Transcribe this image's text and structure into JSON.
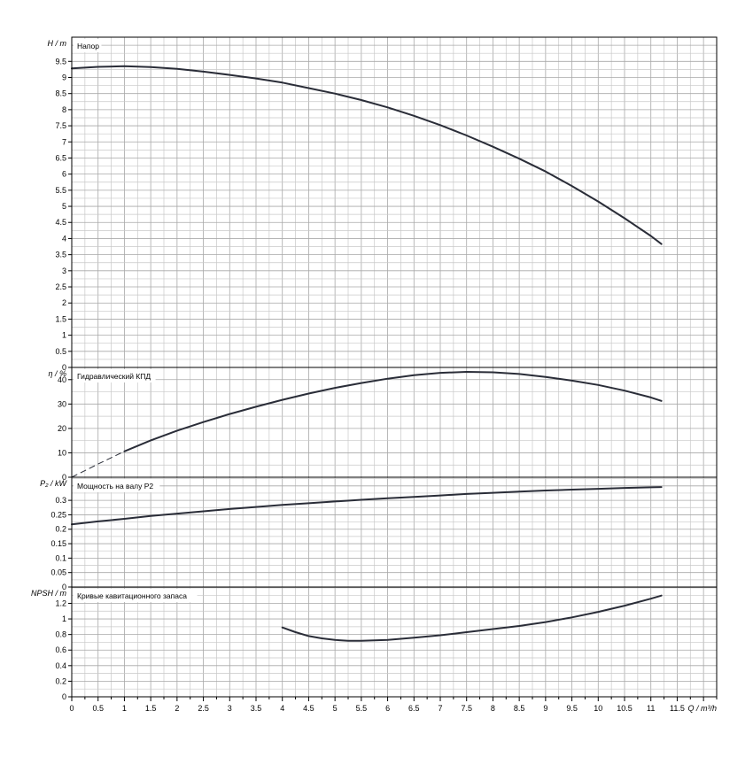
{
  "chart_data": {
    "type": "line",
    "x_axis": {
      "label": "Q / m³/h",
      "range": [
        0,
        12.25
      ],
      "ticks": [
        "0",
        "0.5",
        "1",
        "1.5",
        "2",
        "2.5",
        "3",
        "3.5",
        "4",
        "4.5",
        "5",
        "5.5",
        "6",
        "6.5",
        "7",
        "7.5",
        "8",
        "8.5",
        "9",
        "9.5",
        "10",
        "10.5",
        "11",
        "11.5"
      ]
    },
    "grid": true,
    "panels": [
      {
        "title": "Напор",
        "ylabel": "H / m",
        "ylim": [
          0,
          10.25
        ],
        "yticks": [
          "0",
          "0.5",
          "1",
          "1.5",
          "2",
          "2.5",
          "3",
          "3.5",
          "4",
          "4.5",
          "5",
          "5.5",
          "6",
          "6.5",
          "7",
          "7.5",
          "8",
          "8.5",
          "9",
          "9.5"
        ],
        "series": [
          {
            "x": [
              0,
              0.5,
              1,
              1.5,
              2,
              2.5,
              3,
              3.5,
              4,
              4.5,
              5,
              5.5,
              6,
              6.5,
              7,
              7.5,
              8,
              8.5,
              9,
              9.5,
              10,
              10.5,
              11,
              11.2
            ],
            "y": [
              9.28,
              9.33,
              9.35,
              9.32,
              9.27,
              9.18,
              9.08,
              8.97,
              8.84,
              8.67,
              8.5,
              8.3,
              8.07,
              7.81,
              7.52,
              7.2,
              6.85,
              6.48,
              6.08,
              5.63,
              5.15,
              4.63,
              4.08,
              3.83
            ]
          }
        ]
      },
      {
        "title": "Гидравлический КПД",
        "ylabel": "η / %",
        "ylim": [
          0,
          45
        ],
        "yticks": [
          "0",
          "10",
          "20",
          "30",
          "40"
        ],
        "series": [
          {
            "x": [
              1,
              1.5,
              2,
              2.5,
              3,
              3.5,
              4,
              4.5,
              5,
              5.5,
              6,
              6.5,
              7,
              7.5,
              8,
              8.5,
              9,
              9.5,
              10,
              10.5,
              11,
              11.2
            ],
            "y": [
              10.6,
              15.1,
              19.1,
              22.6,
              25.9,
              28.9,
              31.7,
              34.3,
              36.6,
              38.6,
              40.4,
              41.8,
              42.8,
              43.2,
              43.0,
              42.3,
              41.1,
              39.6,
              37.8,
              35.5,
              32.7,
              31.3
            ]
          },
          {
            "x": [
              0,
              0.5,
              1
            ],
            "y": [
              0,
              5.4,
              10.6
            ],
            "style": "dashed"
          }
        ]
      },
      {
        "title": "Мощность на валу P2",
        "ylabel": "P₂ / kW",
        "ylim": [
          0,
          0.38
        ],
        "yticks": [
          "0",
          "0.05",
          "0.1",
          "0.15",
          "0.2",
          "0.25",
          "0.3"
        ],
        "series": [
          {
            "x": [
              0,
              0.5,
              1,
              1.5,
              2,
              2.5,
              3,
              3.5,
              4,
              4.5,
              5,
              5.5,
              6,
              6.5,
              7,
              7.5,
              8,
              8.5,
              9,
              9.5,
              10,
              10.5,
              11,
              11.2
            ],
            "y": [
              0.217,
              0.227,
              0.236,
              0.246,
              0.254,
              0.262,
              0.27,
              0.277,
              0.284,
              0.29,
              0.296,
              0.302,
              0.307,
              0.312,
              0.317,
              0.322,
              0.326,
              0.33,
              0.334,
              0.337,
              0.34,
              0.343,
              0.345,
              0.346
            ]
          }
        ]
      },
      {
        "title": "Кривые кавитационного запаса",
        "ylabel": "NPSH / m",
        "ylim": [
          0,
          1.41
        ],
        "yticks": [
          "0",
          "0.2",
          "0.4",
          "0.6",
          "0.8",
          "1",
          "1.2"
        ],
        "series": [
          {
            "x": [
              4.0,
              4.25,
              4.5,
              4.75,
              5.0,
              5.25,
              5.5,
              6.0,
              6.5,
              7.0,
              7.5,
              8.0,
              8.5,
              9.0,
              9.5,
              10.0,
              10.5,
              11.0,
              11.2
            ],
            "y": [
              0.89,
              0.83,
              0.78,
              0.75,
              0.73,
              0.72,
              0.72,
              0.73,
              0.76,
              0.79,
              0.83,
              0.87,
              0.91,
              0.96,
              1.02,
              1.09,
              1.17,
              1.26,
              1.3
            ]
          }
        ]
      }
    ]
  }
}
